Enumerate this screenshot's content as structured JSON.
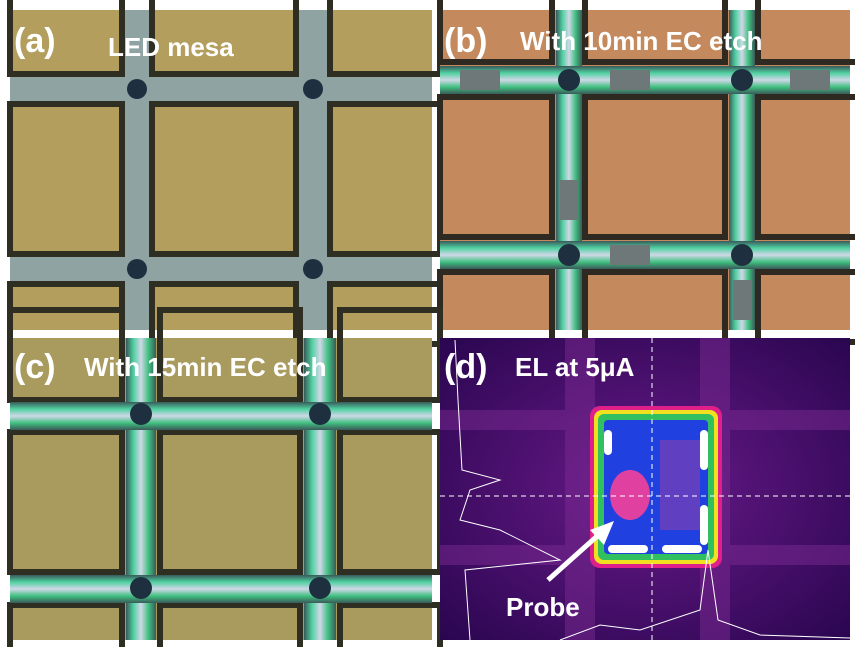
{
  "panels": [
    {
      "label": "(a)",
      "caption": "LED mesa"
    },
    {
      "label": "(b)",
      "caption": "With 10min EC etch"
    },
    {
      "label": "(c)",
      "caption": "With 15min EC etch"
    },
    {
      "label": "(d)",
      "caption": "EL at 5μA",
      "annotation": "Probe"
    }
  ]
}
